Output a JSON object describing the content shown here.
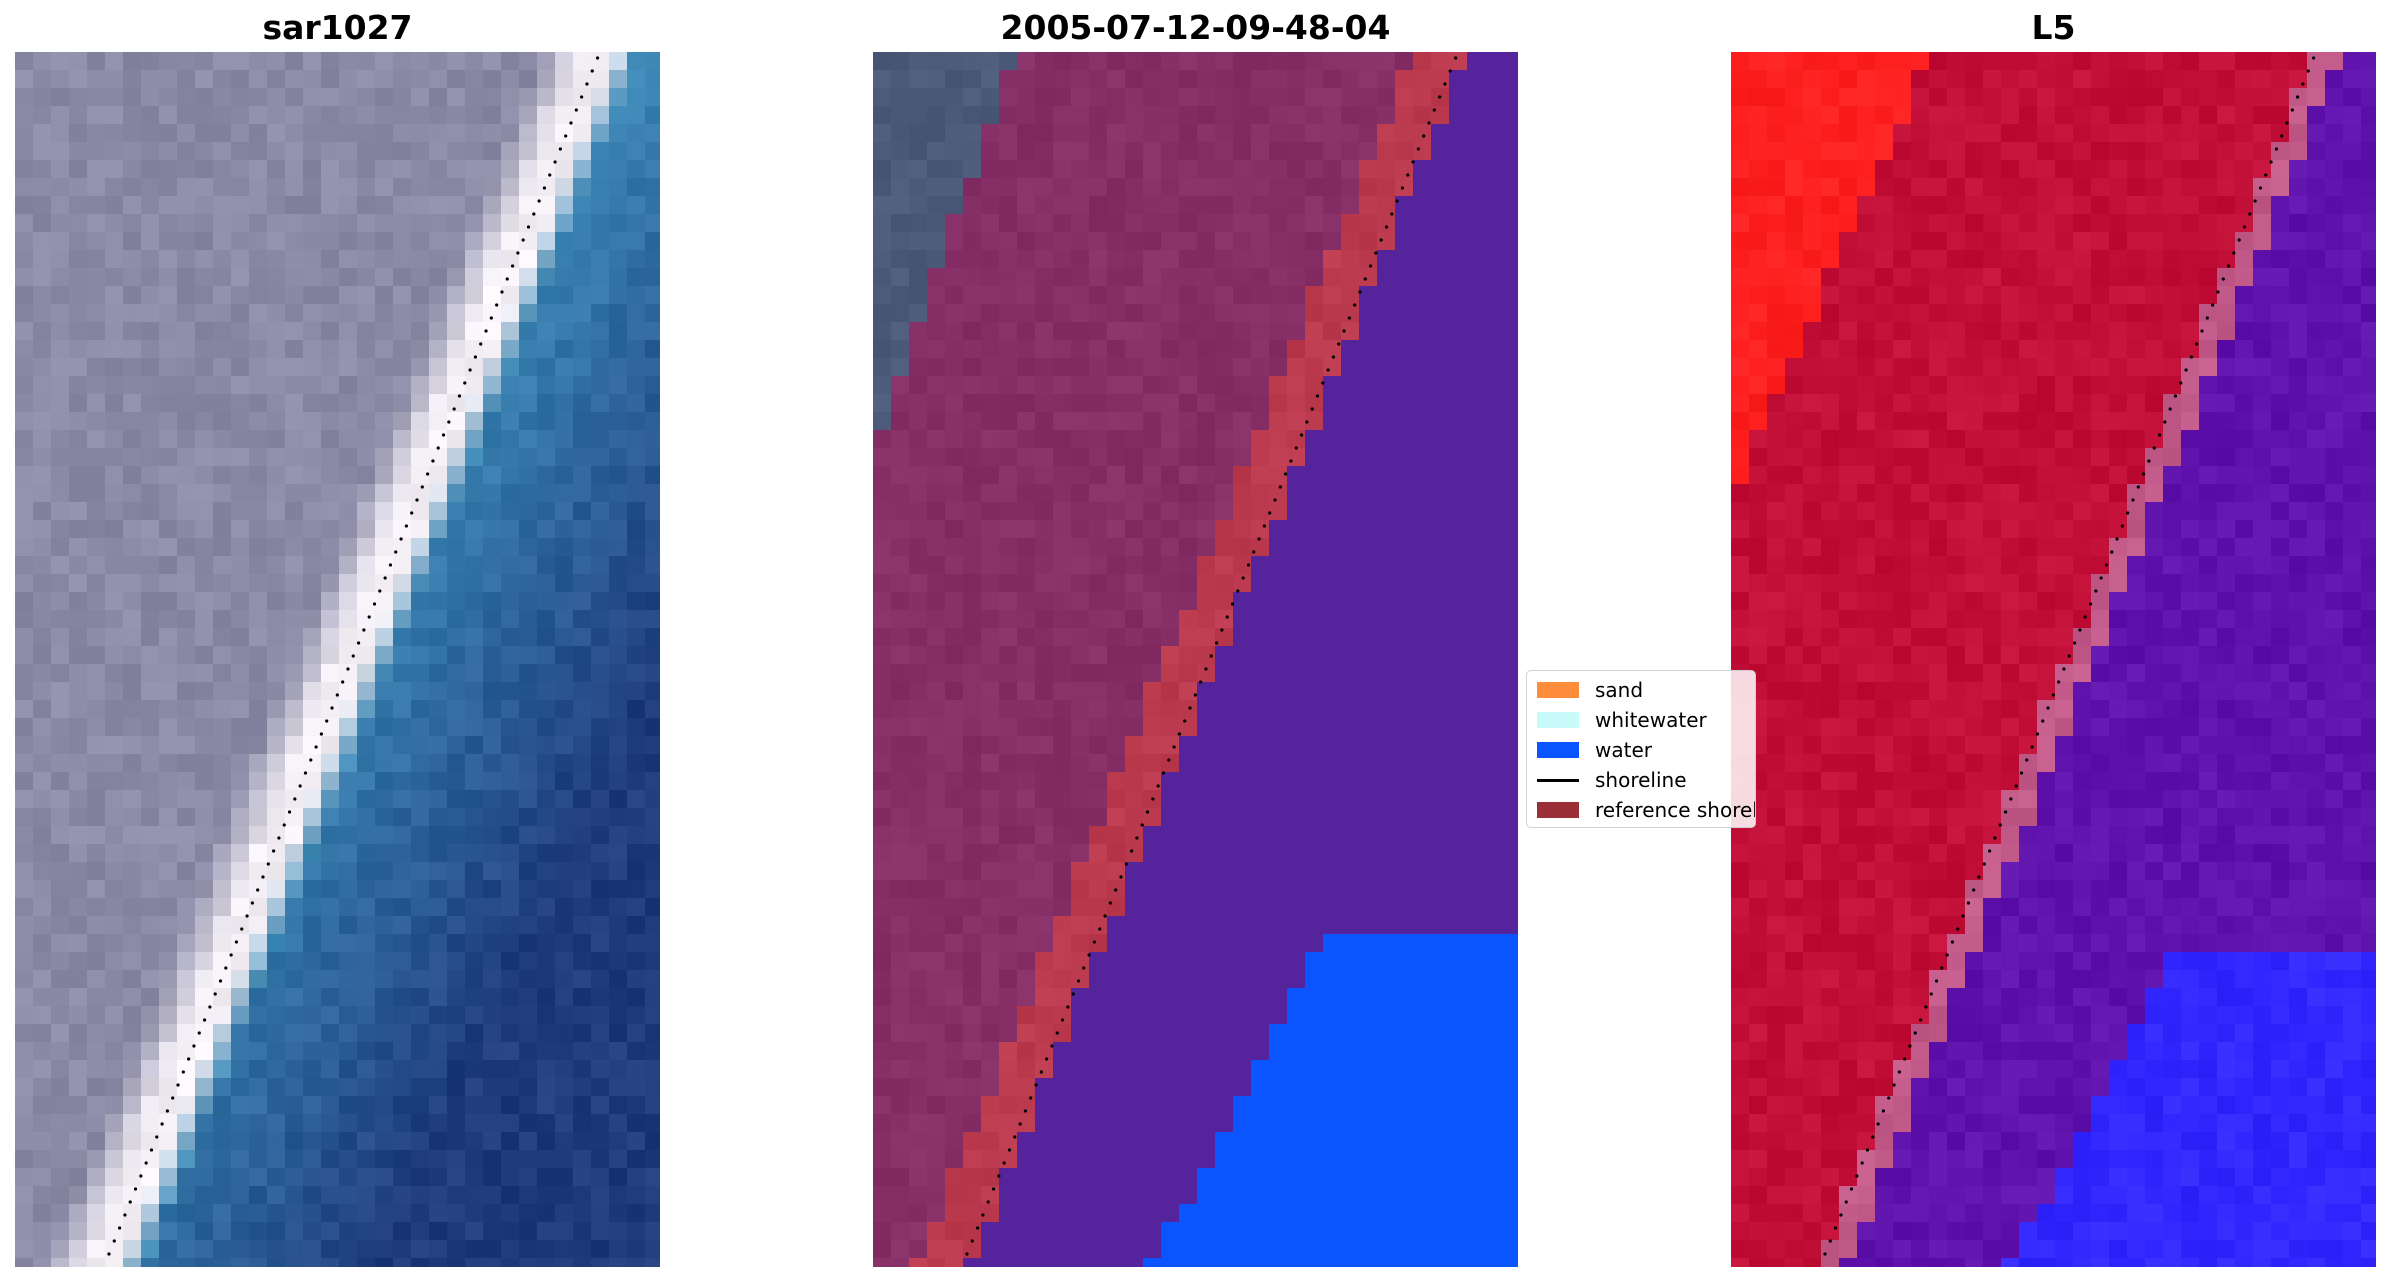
{
  "panels": [
    {
      "title": "sar1027"
    },
    {
      "title": "2005-07-12-09-48-04"
    },
    {
      "title": "L5"
    }
  ],
  "legend": {
    "items": [
      {
        "label": "sand",
        "color": "#ff8c3a",
        "kind": "patch"
      },
      {
        "label": "whitewater",
        "color": "#c8fafa",
        "kind": "patch"
      },
      {
        "label": "water",
        "color": "#0a55ff",
        "kind": "patch"
      },
      {
        "label": "shoreline",
        "color": "#000000",
        "kind": "line"
      },
      {
        "label": "reference shoreline",
        "color": "#9a2f37",
        "kind": "patch"
      }
    ]
  },
  "colors": {
    "rgb_land": "#8a8aa6",
    "rgb_beach": "#f4f0f6",
    "rgb_water_near": "#3a86b4",
    "rgb_water_far": "#1e3c7c",
    "class_land": "#862e66",
    "class_sand_overlay": "#bb3a4e",
    "class_water_overlay": "#55239c",
    "class_water_bright": "#0a55ff",
    "false_color_land": "#c20f38",
    "false_color_land_bright": "#ff2020",
    "false_color_water": "#6012ac",
    "false_color_edge_blue": "#3228ff",
    "shoreline_dots": "#000000"
  }
}
